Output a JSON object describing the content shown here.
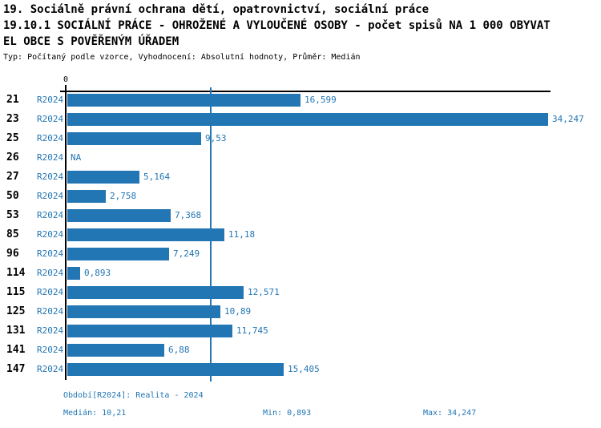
{
  "header": {
    "line1": "19. Sociálně právní ochrana dětí, opatrovnictví, sociální práce",
    "line2": "19.10.1 SOCIÁLNÍ PRÁCE - OHROŽENÉ A VYLOUČENÉ OSOBY - počet spisů NA 1 000 OBYVAT",
    "line3": "EL OBCE S POVĚŘENÝM ÚŘADEM",
    "meta": "Typ: Počítaný podle vzorce, Vyhodnocení: Absolutní hodnoty, Průměr: Medián"
  },
  "chart_data": {
    "type": "bar",
    "orientation": "horizontal",
    "categories": [
      "21",
      "23",
      "25",
      "26",
      "27",
      "50",
      "53",
      "85",
      "96",
      "114",
      "115",
      "125",
      "131",
      "141",
      "147"
    ],
    "series": [
      {
        "name": "R2024",
        "values": [
          16.599,
          34.247,
          9.53,
          null,
          5.164,
          2.758,
          7.368,
          11.18,
          7.249,
          0.893,
          12.571,
          10.89,
          11.745,
          6.88,
          15.405
        ]
      }
    ],
    "value_labels": [
      "16,599",
      "34,247",
      "9,53",
      "NA",
      "5,164",
      "2,758",
      "7,368",
      "11,18",
      "7,249",
      "0,893",
      "12,571",
      "10,89",
      "11,745",
      "6,88",
      "15,405"
    ],
    "na_label": "NA",
    "axis_zero_label": "0",
    "xlim": [
      0,
      34.247
    ],
    "median_value": 10.21,
    "min_value": 0.893,
    "max_value": 34.247,
    "grid": false,
    "bar_color": "#2276b4"
  },
  "footer": {
    "period": "Období[R2024]: Realita - 2024",
    "median": "Medián: 10,21",
    "min": "Min: 0,893",
    "max": "Max: 34,247"
  },
  "colors": {
    "accent": "#2276b4",
    "axis": "#000000",
    "background": "#ffffff"
  }
}
